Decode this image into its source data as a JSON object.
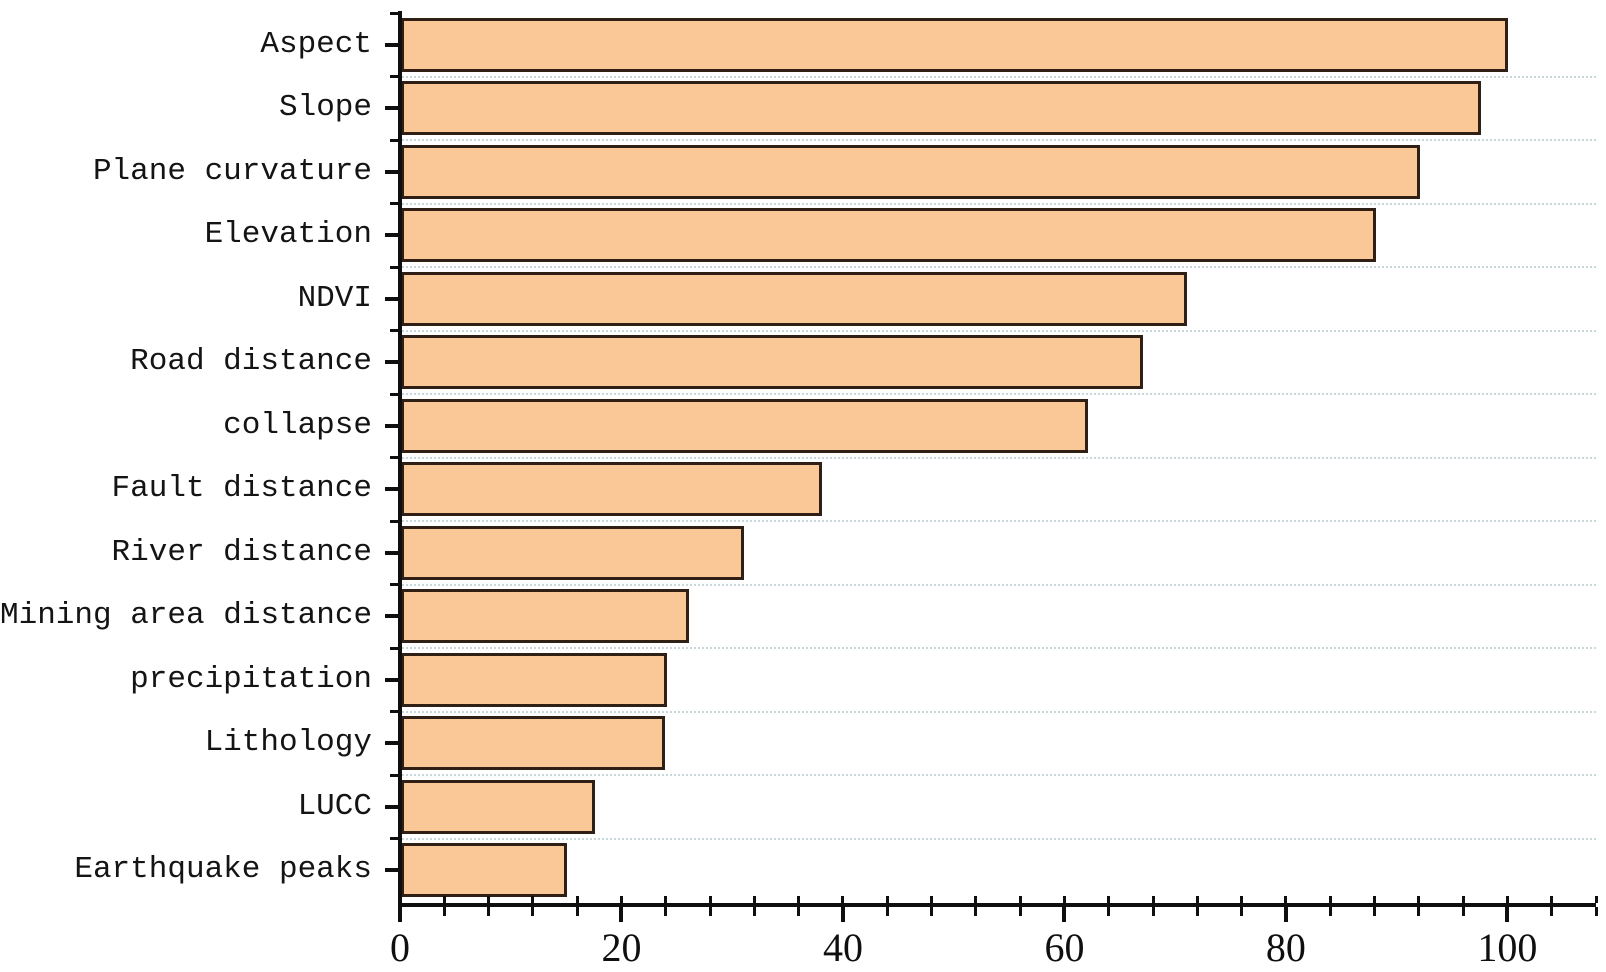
{
  "chart_data": {
    "type": "bar",
    "orientation": "horizontal",
    "title": "",
    "xlabel": "",
    "ylabel": "",
    "categories": [
      "Aspect",
      "Slope",
      "Plane curvature",
      "Elevation",
      "NDVI",
      "Road distance",
      "collapse",
      "Fault distance",
      "River distance",
      "Mining area distance",
      "precipitation",
      "Lithology",
      "LUCC",
      "Earthquake peaks"
    ],
    "values": [
      100,
      97.5,
      92,
      88,
      71,
      67,
      62,
      38,
      31,
      26,
      24,
      23.8,
      17.5,
      15
    ],
    "xlim": [
      0,
      108
    ],
    "xticks": [
      0,
      20,
      40,
      60,
      80,
      100
    ],
    "xtick_labels": [
      "0",
      "20",
      "40",
      "60",
      "80",
      "100"
    ],
    "minor_tick_step": 4,
    "grid": "horizontal dotted lines between category rows",
    "legend": "none",
    "bar_fill_color": "#FAC796",
    "bar_border_color": "#2F1F15",
    "grid_color": "#C7D7DA",
    "axis_color": "#0F0F0F",
    "background_color": "#FFFFFF"
  }
}
